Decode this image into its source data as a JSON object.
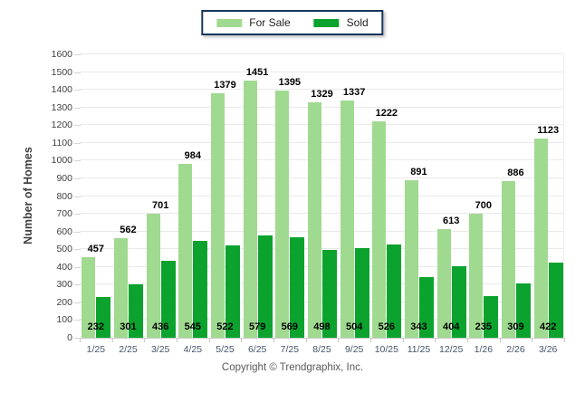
{
  "legend": {
    "items": [
      {
        "label": "For Sale",
        "color": "#a0da90"
      },
      {
        "label": "Sold",
        "color": "#0ba32d"
      }
    ],
    "border_color": "#17375d"
  },
  "chart_data": {
    "type": "bar",
    "title": "",
    "xlabel": "",
    "ylabel": "Number of Homes",
    "ylim": [
      0,
      1600
    ],
    "ytick_step": 100,
    "grid": true,
    "legend_position": "top-center",
    "categories": [
      "1/25",
      "2/25",
      "3/25",
      "4/25",
      "5/25",
      "6/25",
      "7/25",
      "8/25",
      "9/25",
      "10/25",
      "11/25",
      "12/25",
      "1/26",
      "2/26",
      "3/26"
    ],
    "series": [
      {
        "name": "For Sale",
        "color": "#a0da90",
        "values": [
          457,
          562,
          701,
          984,
          1379,
          1451,
          1395,
          1329,
          1337,
          1222,
          891,
          613,
          700,
          886,
          1123
        ]
      },
      {
        "name": "Sold",
        "color": "#0ba32d",
        "values": [
          232,
          301,
          436,
          545,
          522,
          579,
          569,
          498,
          504,
          526,
          343,
          404,
          235,
          309,
          422
        ]
      }
    ]
  },
  "footer": {
    "copyright": "Copyright © Trendgraphix, Inc."
  },
  "colors": {
    "for_sale": "#a0da90",
    "sold": "#0ba32d",
    "gridline": "#e9e9e9",
    "axis_line": "#c9c9c9",
    "y_tick_label": "#404040",
    "x_tick_label": "#44546a",
    "data_label": "#000000",
    "legend_border": "#17375d",
    "footer_text": "#595959",
    "background": "#ffffff"
  }
}
